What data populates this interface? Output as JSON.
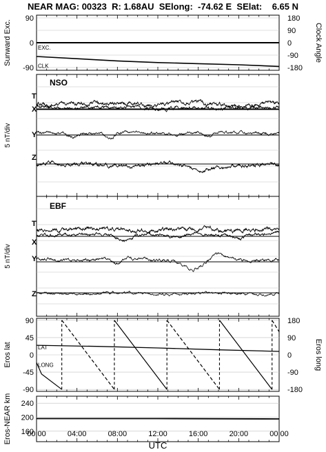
{
  "header": {
    "title": "NEAR MAG: 00323  R: 1.68AU  SElong:  -74.62 E  SElat:    6.65 N"
  },
  "colors": {
    "ink": "#000000",
    "grid": "#bfbfbf",
    "background": "#ffffff"
  },
  "chart_data": [
    {
      "type": "line",
      "panel": "sunward",
      "ylabel": "Sunward Exc.",
      "y2label": "Clock Angle",
      "yticks": [
        "90",
        "0",
        "-90"
      ],
      "y2ticks": [
        "180",
        "90",
        "0",
        "-90",
        "-180"
      ],
      "ylim": [
        -100,
        100
      ],
      "annotations": [
        "EXC.",
        "CLK"
      ],
      "series": [
        {
          "key": "exc",
          "values": [
            [
              0,
              0
            ],
            [
              24,
              0
            ]
          ]
        },
        {
          "key": "clk",
          "values": [
            [
              0,
              -50
            ],
            [
              4,
              -58
            ],
            [
              8,
              -66
            ],
            [
              12,
              -72
            ],
            [
              16,
              -76
            ],
            [
              20,
              -80
            ],
            [
              24,
              -86
            ]
          ]
        }
      ]
    },
    {
      "type": "line",
      "panel": "nso",
      "title": "NSO",
      "ylabel": "5 nT/div",
      "components": [
        "T",
        "X",
        "Y",
        "Z"
      ]
    },
    {
      "type": "line",
      "panel": "ebf",
      "title": "EBF",
      "ylabel": "5 nT/div",
      "components": [
        "T",
        "X",
        "Y",
        "Z"
      ]
    },
    {
      "type": "line",
      "panel": "eros",
      "ylabel": "Eros lat",
      "y2label": "Eros long",
      "yticks": [
        "90",
        "45",
        "0",
        "-45",
        "-90"
      ],
      "y2ticks": [
        "180",
        "90",
        "0",
        "-90",
        "-180"
      ],
      "ylim": [
        -95,
        95
      ],
      "annotations": [
        "LAT",
        "LONG"
      ],
      "lat": [
        [
          0,
          25
        ],
        [
          6,
          22
        ],
        [
          12,
          18
        ],
        [
          18,
          13
        ],
        [
          24,
          9
        ]
      ],
      "long_ramps": [
        [
          0.5,
          2.5
        ],
        [
          2.5,
          7.7
        ],
        [
          7.7,
          12.9
        ],
        [
          12.9,
          18.1
        ],
        [
          18.1,
          23.3
        ],
        [
          23.3,
          24
        ]
      ],
      "long_range": [
        -180,
        180
      ]
    },
    {
      "type": "line",
      "panel": "distance",
      "ylabel": "Eros-NEAR km",
      "yticks": [
        "240",
        "200",
        "160"
      ],
      "ylim": [
        130,
        260
      ],
      "series": [
        {
          "key": "dist",
          "values": [
            [
              0,
              196
            ],
            [
              12,
              196
            ],
            [
              24,
              195
            ]
          ]
        }
      ]
    }
  ],
  "xaxis": {
    "label": "UTC",
    "ticks": [
      "00:00",
      "04:00",
      "08:00",
      "12:00",
      "16:00",
      "20:00",
      "00:00"
    ],
    "range": [
      0,
      24
    ]
  }
}
